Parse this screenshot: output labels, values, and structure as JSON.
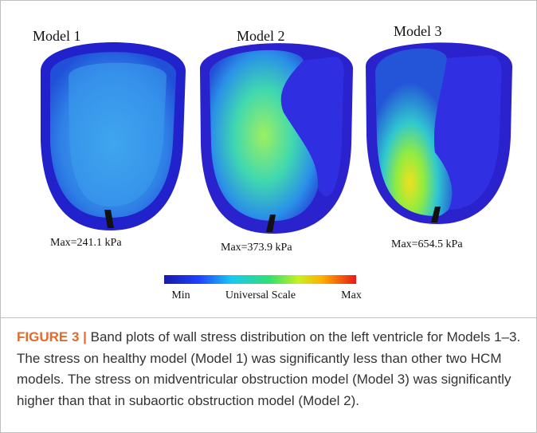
{
  "figure": {
    "panels": [
      {
        "title": "Model 1",
        "max_label": "Max=241.1  kPa"
      },
      {
        "title": "Model 2",
        "max_label": "Max=373.9  kPa"
      },
      {
        "title": "Model 3",
        "max_label": "Max=654.5  kPa"
      }
    ],
    "colorbar": {
      "min_label": "Min",
      "title": "Universal Scale",
      "max_label": "Max"
    }
  },
  "caption": {
    "label": "FIGURE 3 |",
    "text": "Band plots of wall stress distribution on the left ventricle for Models 1–3. The stress on healthy model (Model 1) was significantly less than other two HCM models. The stress on midventricular obstruction model (Model 3) was significantly higher than that in subaortic obstruction model (Model 2)."
  }
}
